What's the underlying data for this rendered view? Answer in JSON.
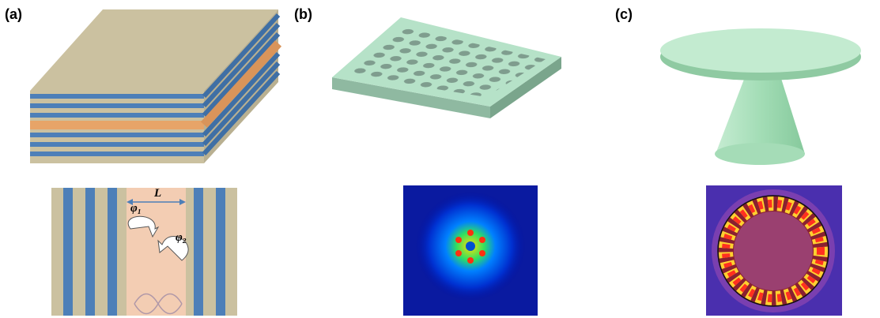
{
  "panels": [
    {
      "label": "(a)",
      "annotations": [
        "L",
        "φ₁",
        "φ₂"
      ]
    },
    {
      "label": "(b)"
    },
    {
      "label": "(c)"
    }
  ]
}
